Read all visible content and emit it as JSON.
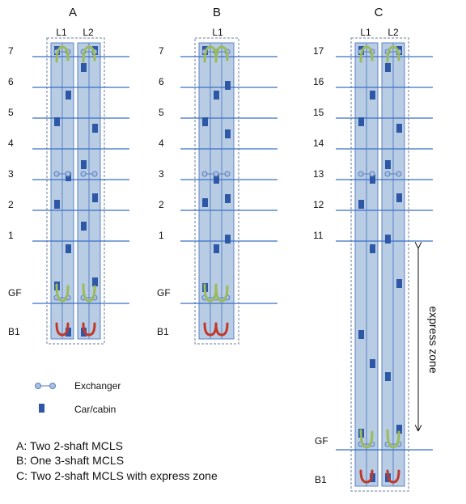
{
  "colors": {
    "floor_line": "#3a6fc4",
    "shaft_fill": "#b8cce4",
    "shaft_stroke": "#5b85c8",
    "car": "#2e58a6",
    "exchanger_fill": "#a9c1e6",
    "exchanger_stroke": "#5b7fb8",
    "green_arrow": "#9bbb59",
    "red_arrow": "#c0392b"
  },
  "panels": [
    {
      "title": "A",
      "shaft_labels": [
        "L1",
        "L2"
      ],
      "floor_labels": [
        "7",
        "6",
        "5",
        "4",
        "3",
        "2",
        "1",
        "GF",
        "B1"
      ]
    },
    {
      "title": "B",
      "shaft_labels": [
        "L1"
      ],
      "floor_labels": [
        "7",
        "6",
        "5",
        "4",
        "3",
        "2",
        "1",
        "GF",
        "B1"
      ]
    },
    {
      "title": "C",
      "shaft_labels": [
        "L1",
        "L2"
      ],
      "floor_labels": [
        "17",
        "16",
        "15",
        "14",
        "13",
        "12",
        "11",
        "GF",
        "B1"
      ],
      "express_zone_label": "express zone"
    }
  ],
  "legend": [
    {
      "icon": "exchanger-icon",
      "label": "Exchanger"
    },
    {
      "icon": "car-cabin-icon",
      "label": "Car/cabin"
    }
  ],
  "caption": [
    "A: Two 2-shaft MCLS",
    "B: One 3-shaft MCLS",
    "C: Two 2-shaft MCLS with express zone"
  ]
}
